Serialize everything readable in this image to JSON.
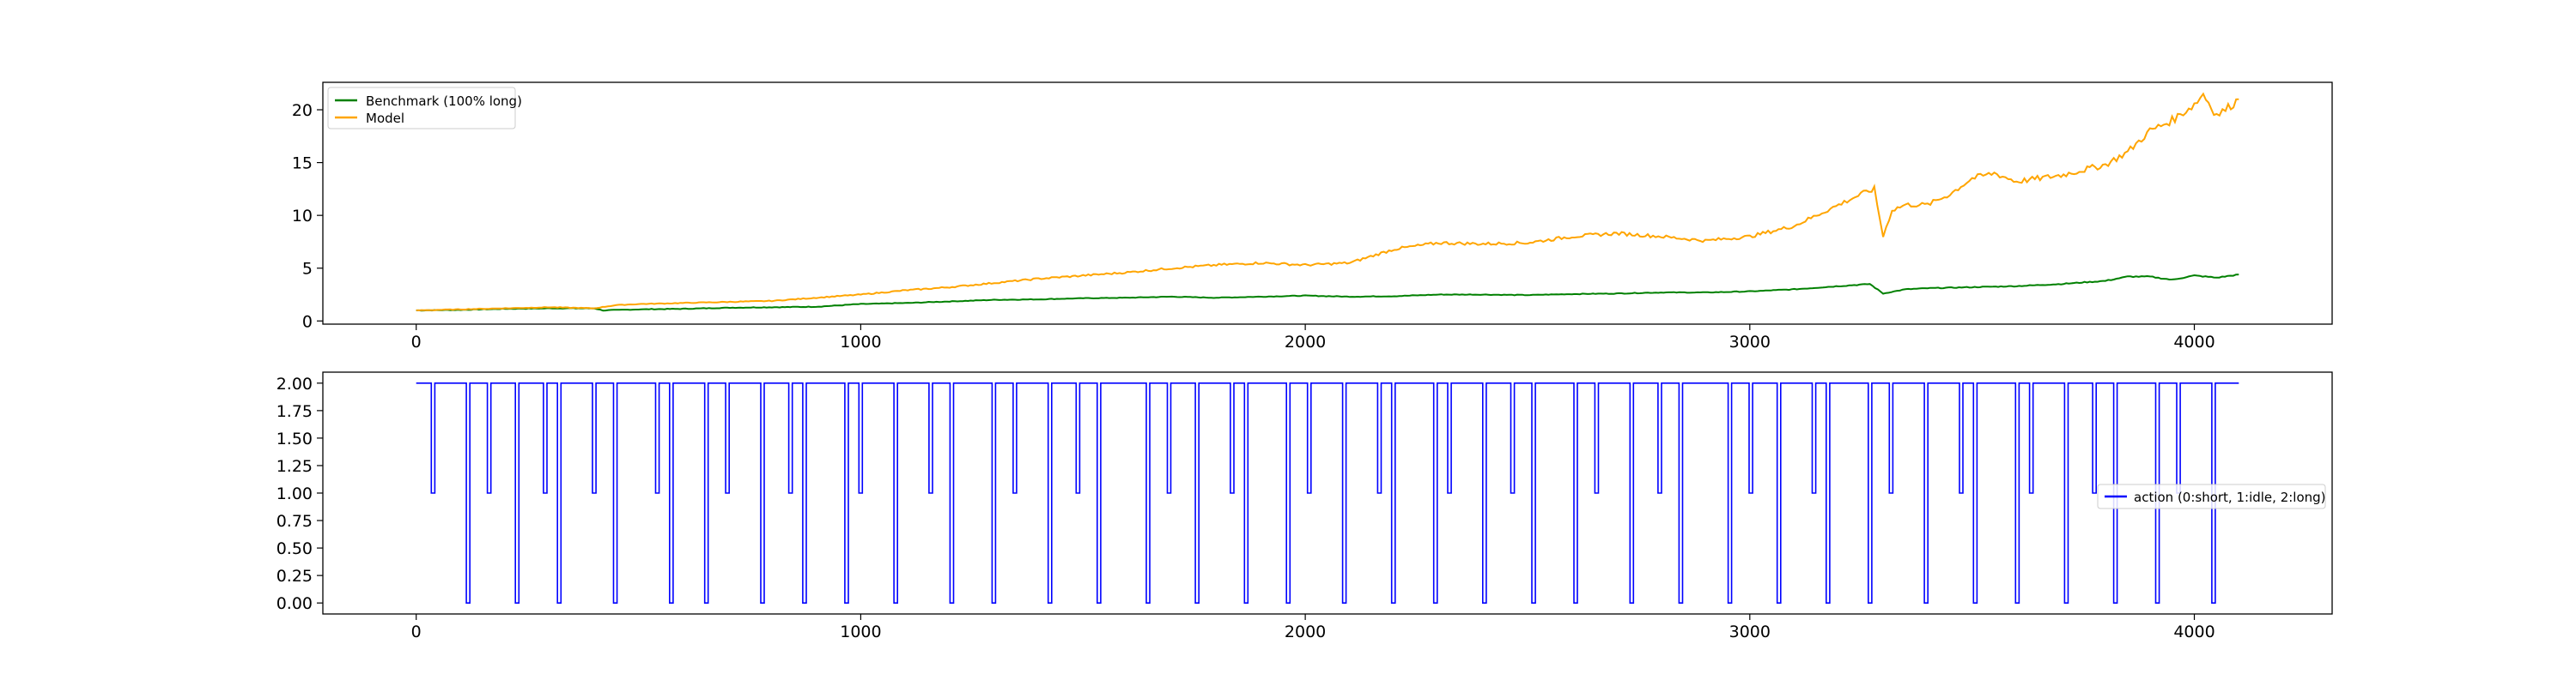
{
  "chart_data": [
    {
      "type": "line",
      "title": "",
      "xlabel": "",
      "ylabel": "",
      "xlim": [
        -210,
        4310
      ],
      "ylim": [
        -0.3,
        22.6
      ],
      "xticks": [
        0,
        1000,
        2000,
        3000,
        4000
      ],
      "yticks": [
        0,
        5,
        10,
        15,
        20
      ],
      "grid": false,
      "legend_position": "upper left",
      "series": [
        {
          "name": "Benchmark (100% long)",
          "color": "#008000",
          "x": [
            0,
            100,
            200,
            300,
            400,
            420,
            500,
            600,
            700,
            800,
            900,
            1000,
            1100,
            1200,
            1300,
            1400,
            1500,
            1600,
            1700,
            1800,
            1900,
            2000,
            2100,
            2200,
            2300,
            2400,
            2500,
            2600,
            2700,
            2800,
            2900,
            3000,
            3100,
            3200,
            3270,
            3300,
            3350,
            3400,
            3500,
            3600,
            3700,
            3800,
            3850,
            3900,
            3950,
            4000,
            4050,
            4100
          ],
          "y": [
            1.0,
            1.05,
            1.15,
            1.2,
            1.2,
            1.0,
            1.1,
            1.15,
            1.25,
            1.3,
            1.35,
            1.6,
            1.7,
            1.85,
            2.0,
            2.05,
            2.15,
            2.2,
            2.3,
            2.2,
            2.3,
            2.4,
            2.3,
            2.35,
            2.5,
            2.5,
            2.45,
            2.55,
            2.6,
            2.7,
            2.7,
            2.8,
            3.0,
            3.3,
            3.5,
            2.6,
            3.0,
            3.1,
            3.2,
            3.3,
            3.5,
            3.8,
            4.2,
            4.2,
            3.9,
            4.3,
            4.1,
            4.4
          ]
        },
        {
          "name": "Model",
          "color": "#ffa500",
          "x": [
            0,
            100,
            200,
            300,
            400,
            450,
            500,
            600,
            700,
            800,
            900,
            1000,
            1100,
            1200,
            1300,
            1400,
            1500,
            1600,
            1700,
            1800,
            1900,
            2000,
            2100,
            2200,
            2300,
            2400,
            2500,
            2600,
            2700,
            2800,
            2900,
            3000,
            3100,
            3150,
            3200,
            3250,
            3280,
            3300,
            3320,
            3350,
            3400,
            3450,
            3500,
            3550,
            3600,
            3700,
            3800,
            3850,
            3900,
            3950,
            4000,
            4020,
            4050,
            4070,
            4100
          ],
          "y": [
            1.0,
            1.1,
            1.2,
            1.3,
            1.2,
            1.5,
            1.6,
            1.7,
            1.8,
            1.9,
            2.2,
            2.5,
            2.9,
            3.2,
            3.6,
            4.0,
            4.3,
            4.6,
            5.0,
            5.3,
            5.5,
            5.3,
            5.5,
            6.8,
            7.4,
            7.3,
            7.4,
            8.0,
            8.3,
            8.0,
            7.6,
            8.0,
            9.0,
            10.0,
            11.0,
            12.0,
            12.5,
            8.0,
            10.5,
            11.0,
            11.0,
            12.0,
            13.5,
            14.0,
            13.2,
            13.8,
            14.8,
            16.0,
            18.0,
            19.0,
            20.5,
            21.5,
            19.5,
            20.0,
            21.0
          ]
        }
      ],
      "legend": [
        "Benchmark (100% long)",
        "Model"
      ]
    },
    {
      "type": "line",
      "title": "",
      "xlabel": "",
      "ylabel": "",
      "xlim": [
        -210,
        4310
      ],
      "ylim": [
        -0.1,
        2.1
      ],
      "xticks": [
        0,
        1000,
        2000,
        3000,
        4000
      ],
      "yticks": [
        "0.00",
        "0.25",
        "0.50",
        "0.75",
        "1.00",
        "1.25",
        "1.50",
        "1.75",
        "2.00"
      ],
      "grid": false,
      "legend_position": "center right",
      "series": [
        {
          "name": "action (0:short, 1:idle, 2:long)",
          "color": "#0000ff",
          "drawstyle": "steps",
          "x_start": 0,
          "x_end": 4100,
          "values_note_levels": [
            0,
            1,
            2
          ],
          "pattern": [
            2,
            2,
            1,
            2,
            2,
            2,
            2,
            0,
            2,
            2,
            1,
            2,
            2,
            2,
            0,
            2,
            2,
            2,
            1,
            2,
            0,
            2,
            2,
            2,
            2,
            1,
            2,
            2,
            0,
            2,
            2,
            2,
            2,
            2,
            1,
            2,
            0,
            2,
            2,
            2,
            2,
            0,
            2,
            2,
            1,
            2,
            2,
            2,
            2,
            0,
            2,
            2,
            2,
            1,
            2,
            0,
            2,
            2,
            2,
            2,
            2,
            0,
            2,
            1,
            2,
            2,
            2,
            2,
            0,
            2,
            2,
            2,
            2,
            1,
            2,
            2,
            0,
            2,
            2,
            2,
            2,
            2,
            0,
            2,
            2,
            1,
            2,
            2,
            2,
            2,
            0,
            2,
            2,
            2,
            1,
            2,
            2,
            0,
            2,
            2,
            2,
            2,
            2,
            2,
            0,
            2,
            2,
            1,
            2,
            2,
            2,
            0,
            2,
            2,
            2,
            2,
            1,
            2,
            0,
            2,
            2,
            2,
            2,
            2,
            0,
            2,
            2,
            1,
            2,
            2,
            2,
            2,
            0,
            2,
            2,
            2,
            2,
            1,
            2,
            0,
            2,
            2,
            2,
            2,
            2,
            0,
            2,
            1,
            2,
            2,
            2,
            2,
            0,
            2,
            2,
            2,
            1,
            2,
            2,
            0,
            2,
            2,
            2,
            2,
            2,
            0,
            2,
            2,
            1,
            2,
            2,
            2,
            2,
            0,
            2,
            2,
            2,
            1,
            2,
            2,
            0,
            2,
            2,
            2,
            2,
            2,
            2,
            0,
            2,
            2,
            1,
            2,
            2,
            2,
            0,
            2,
            2,
            2,
            2,
            1,
            2,
            0,
            2,
            2,
            2,
            2,
            2,
            0,
            2,
            2,
            1,
            2,
            2,
            2,
            2,
            0,
            2,
            2,
            2,
            2,
            1,
            2,
            0,
            2,
            2,
            2,
            2,
            2,
            0,
            2,
            1,
            2,
            2,
            2,
            2,
            0,
            2,
            2,
            2,
            1,
            2,
            2,
            0,
            2,
            2,
            2,
            2,
            2,
            0,
            2,
            2,
            1,
            2,
            2,
            2,
            2,
            0,
            2,
            2,
            2
          ]
        }
      ],
      "legend": [
        "action (0:short, 1:idle, 2:long)"
      ]
    }
  ]
}
